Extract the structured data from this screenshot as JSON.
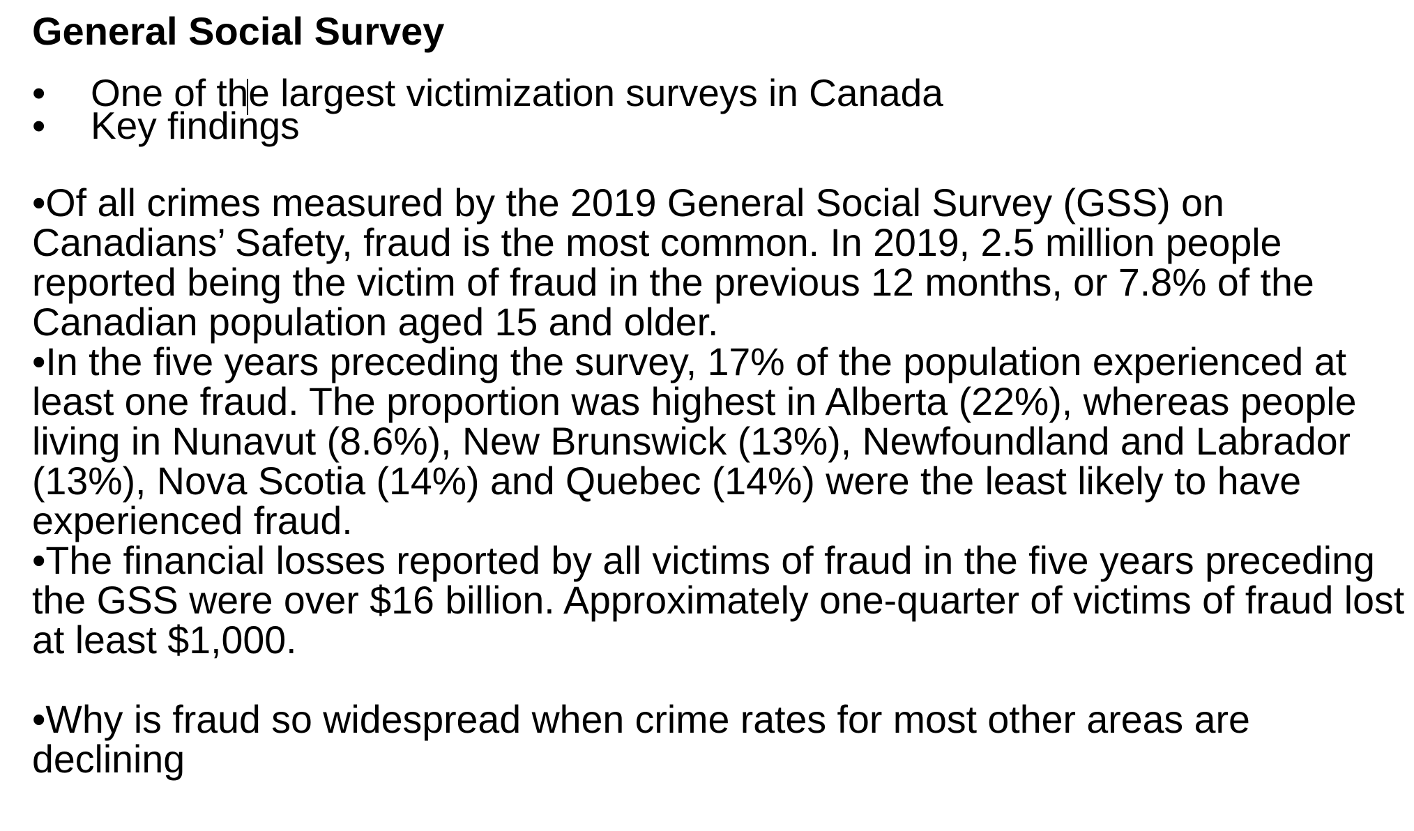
{
  "document": {
    "title": "General Social Survey",
    "bullets": [
      {
        "marker": "•",
        "text": "One of the largest victimization surveys in Canada"
      },
      {
        "marker": "•",
        "text": "Key findings"
      }
    ],
    "paragraphs": [
      "•Of all crimes measured by the 2019 General Social Survey (GSS) on Canadians’ Safety, fraud is the most common. In 2019, 2.5 million people reported being the victim of fraud in the previous 12 months, or 7.8% of the Canadian population aged 15 and older.",
      "•In the five years preceding the survey, 17% of the population experienced at least one fraud. The proportion was highest in Alberta (22%), whereas people living in Nunavut (8.6%), New Brunswick (13%), Newfoundland and Labrador (13%), Nova Scotia (14%) and Quebec (14%) were the least likely to have experienced fraud.",
      "•The financial losses reported by all victims of fraud in the five years preceding the GSS were over $16 billion. Approximately one-quarter of victims of fraud lost at least $1,000.",
      "•Why is fraud so widespread when crime rates for most other areas are declining"
    ]
  }
}
